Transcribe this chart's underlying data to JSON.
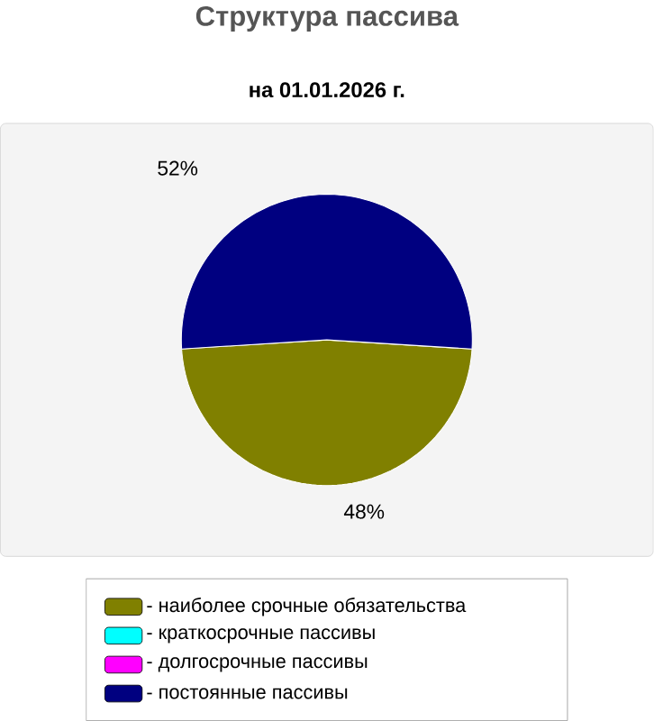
{
  "chart_data": {
    "type": "pie",
    "title": "Структура пассива",
    "subtitle": "на 01.01.2026 г.",
    "categories": [
      "- наиболее срочные обязательства",
      "- краткосрочные пассивы",
      "- долгосрочные пассивы",
      "- постоянные пассивы"
    ],
    "values": [
      48,
      0,
      0,
      52
    ],
    "colors": [
      "#808000",
      "#00ffff",
      "#ff00ff",
      "#000080"
    ],
    "value_labels": [
      "48%",
      null,
      null,
      "52%"
    ],
    "legend": "bottom"
  }
}
